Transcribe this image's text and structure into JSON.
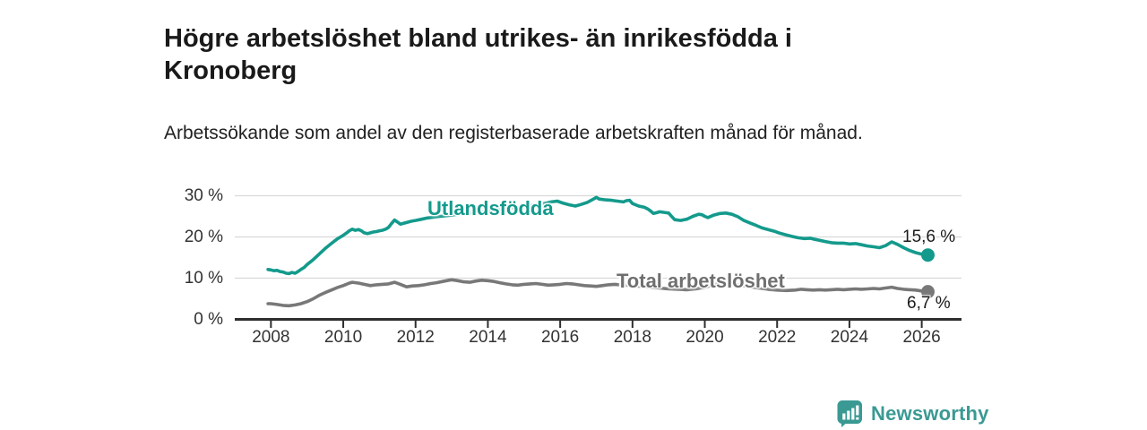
{
  "header": {
    "title": "Högre arbetslöshet bland utrikes- än inrikesfödda i Kronoberg",
    "subtitle": "Arbetssökande som andel av den registerbaserade arbetskraften månad för månad."
  },
  "chart_data": {
    "type": "line",
    "title": "Högre arbetslöshet bland utrikes- än inrikesfödda i Kronoberg",
    "subtitle": "Arbetssökande som andel av den registerbaserade arbetskraften månad för månad.",
    "grid": "horizontal",
    "x_axis": {
      "range": [
        2007.0,
        2027.1
      ],
      "ticks": [
        2008,
        2010,
        2012,
        2014,
        2016,
        2018,
        2020,
        2022,
        2024,
        2026
      ]
    },
    "y_axis": {
      "range": [
        0,
        30
      ],
      "ticks": [
        {
          "value": 0,
          "label": "0 %"
        },
        {
          "value": 10,
          "label": "10 %"
        },
        {
          "value": 20,
          "label": "20 %"
        },
        {
          "value": 30,
          "label": "30 %"
        }
      ]
    },
    "series": [
      {
        "name": "Utlandsfödda",
        "key": "utlandsfodda",
        "color": "#149a8c",
        "end_label": "15,6 %",
        "end_value": 15.6,
        "points": [
          [
            2007.92,
            12.1
          ],
          [
            2008.0,
            12.0
          ],
          [
            2008.08,
            11.8
          ],
          [
            2008.17,
            11.9
          ],
          [
            2008.25,
            11.6
          ],
          [
            2008.33,
            11.5
          ],
          [
            2008.42,
            11.2
          ],
          [
            2008.5,
            11.1
          ],
          [
            2008.58,
            11.4
          ],
          [
            2008.67,
            11.2
          ],
          [
            2008.75,
            11.6
          ],
          [
            2008.83,
            12.1
          ],
          [
            2008.92,
            12.6
          ],
          [
            2009.0,
            13.3
          ],
          [
            2009.17,
            14.5
          ],
          [
            2009.33,
            15.8
          ],
          [
            2009.5,
            17.2
          ],
          [
            2009.67,
            18.4
          ],
          [
            2009.83,
            19.5
          ],
          [
            2010.0,
            20.4
          ],
          [
            2010.08,
            20.9
          ],
          [
            2010.17,
            21.5
          ],
          [
            2010.25,
            21.9
          ],
          [
            2010.33,
            21.6
          ],
          [
            2010.42,
            21.8
          ],
          [
            2010.5,
            21.5
          ],
          [
            2010.58,
            21.0
          ],
          [
            2010.67,
            20.8
          ],
          [
            2010.75,
            21.0
          ],
          [
            2010.83,
            21.2
          ],
          [
            2010.92,
            21.3
          ],
          [
            2011.0,
            21.5
          ],
          [
            2011.08,
            21.6
          ],
          [
            2011.17,
            21.9
          ],
          [
            2011.25,
            22.3
          ],
          [
            2011.33,
            23.2
          ],
          [
            2011.42,
            24.1
          ],
          [
            2011.5,
            23.6
          ],
          [
            2011.58,
            23.1
          ],
          [
            2011.67,
            23.3
          ],
          [
            2011.75,
            23.5
          ],
          [
            2011.83,
            23.7
          ],
          [
            2011.92,
            23.9
          ],
          [
            2012.0,
            24.0
          ],
          [
            2012.17,
            24.3
          ],
          [
            2012.33,
            24.6
          ],
          [
            2012.5,
            24.8
          ],
          [
            2012.67,
            25.0
          ],
          [
            2012.83,
            25.1
          ],
          [
            2013.0,
            25.3
          ],
          [
            2013.25,
            25.6
          ],
          [
            2013.5,
            25.8
          ],
          [
            2013.75,
            26.1
          ],
          [
            2014.0,
            26.3
          ],
          [
            2014.25,
            26.6
          ],
          [
            2014.5,
            26.8
          ],
          [
            2014.75,
            27.1
          ],
          [
            2015.0,
            27.4
          ],
          [
            2015.25,
            27.7
          ],
          [
            2015.5,
            28.0
          ],
          [
            2015.75,
            28.5
          ],
          [
            2015.92,
            28.7
          ],
          [
            2016.08,
            28.2
          ],
          [
            2016.25,
            27.8
          ],
          [
            2016.42,
            27.5
          ],
          [
            2016.58,
            27.9
          ],
          [
            2016.75,
            28.4
          ],
          [
            2016.92,
            29.2
          ],
          [
            2017.0,
            29.6
          ],
          [
            2017.08,
            29.2
          ],
          [
            2017.25,
            29.0
          ],
          [
            2017.42,
            28.9
          ],
          [
            2017.58,
            28.7
          ],
          [
            2017.75,
            28.5
          ],
          [
            2017.83,
            28.8
          ],
          [
            2017.92,
            28.9
          ],
          [
            2018.0,
            28.1
          ],
          [
            2018.17,
            27.5
          ],
          [
            2018.33,
            27.2
          ],
          [
            2018.42,
            26.8
          ],
          [
            2018.5,
            26.3
          ],
          [
            2018.58,
            25.7
          ],
          [
            2018.67,
            25.9
          ],
          [
            2018.75,
            26.1
          ],
          [
            2018.92,
            25.9
          ],
          [
            2019.0,
            25.8
          ],
          [
            2019.08,
            25.0
          ],
          [
            2019.17,
            24.2
          ],
          [
            2019.33,
            24.0
          ],
          [
            2019.5,
            24.3
          ],
          [
            2019.67,
            25.0
          ],
          [
            2019.83,
            25.5
          ],
          [
            2019.92,
            25.4
          ],
          [
            2020.0,
            25.0
          ],
          [
            2020.08,
            24.7
          ],
          [
            2020.25,
            25.3
          ],
          [
            2020.42,
            25.7
          ],
          [
            2020.58,
            25.8
          ],
          [
            2020.75,
            25.5
          ],
          [
            2020.92,
            24.9
          ],
          [
            2021.08,
            24.0
          ],
          [
            2021.25,
            23.4
          ],
          [
            2021.42,
            22.8
          ],
          [
            2021.58,
            22.2
          ],
          [
            2021.75,
            21.8
          ],
          [
            2021.92,
            21.4
          ],
          [
            2022.08,
            20.9
          ],
          [
            2022.25,
            20.5
          ],
          [
            2022.42,
            20.1
          ],
          [
            2022.58,
            19.8
          ],
          [
            2022.75,
            19.6
          ],
          [
            2022.92,
            19.7
          ],
          [
            2023.0,
            19.5
          ],
          [
            2023.17,
            19.2
          ],
          [
            2023.33,
            18.9
          ],
          [
            2023.5,
            18.6
          ],
          [
            2023.67,
            18.5
          ],
          [
            2023.83,
            18.5
          ],
          [
            2024.0,
            18.3
          ],
          [
            2024.17,
            18.4
          ],
          [
            2024.33,
            18.1
          ],
          [
            2024.5,
            17.8
          ],
          [
            2024.67,
            17.6
          ],
          [
            2024.83,
            17.4
          ],
          [
            2025.0,
            17.9
          ],
          [
            2025.17,
            18.8
          ],
          [
            2025.33,
            18.2
          ],
          [
            2025.5,
            17.4
          ],
          [
            2025.67,
            16.7
          ],
          [
            2025.83,
            16.2
          ],
          [
            2026.0,
            15.8
          ],
          [
            2026.17,
            15.6
          ]
        ]
      },
      {
        "name": "Total arbetslöshet",
        "key": "total-arbetsloshet",
        "color": "#787878",
        "end_label": "6,7 %",
        "end_value": 6.7,
        "points": [
          [
            2007.92,
            3.8
          ],
          [
            2008.0,
            3.8
          ],
          [
            2008.17,
            3.6
          ],
          [
            2008.33,
            3.4
          ],
          [
            2008.5,
            3.3
          ],
          [
            2008.67,
            3.5
          ],
          [
            2008.83,
            3.8
          ],
          [
            2009.0,
            4.3
          ],
          [
            2009.17,
            5.0
          ],
          [
            2009.33,
            5.8
          ],
          [
            2009.5,
            6.5
          ],
          [
            2009.67,
            7.1
          ],
          [
            2009.83,
            7.7
          ],
          [
            2010.0,
            8.2
          ],
          [
            2010.17,
            8.8
          ],
          [
            2010.25,
            9.0
          ],
          [
            2010.42,
            8.8
          ],
          [
            2010.58,
            8.5
          ],
          [
            2010.75,
            8.2
          ],
          [
            2010.92,
            8.4
          ],
          [
            2011.08,
            8.5
          ],
          [
            2011.25,
            8.6
          ],
          [
            2011.42,
            9.0
          ],
          [
            2011.58,
            8.5
          ],
          [
            2011.75,
            7.9
          ],
          [
            2011.92,
            8.1
          ],
          [
            2012.08,
            8.2
          ],
          [
            2012.25,
            8.4
          ],
          [
            2012.42,
            8.7
          ],
          [
            2012.58,
            8.9
          ],
          [
            2012.75,
            9.2
          ],
          [
            2012.92,
            9.5
          ],
          [
            2013.0,
            9.6
          ],
          [
            2013.17,
            9.4
          ],
          [
            2013.33,
            9.1
          ],
          [
            2013.5,
            9.0
          ],
          [
            2013.67,
            9.3
          ],
          [
            2013.83,
            9.5
          ],
          [
            2014.0,
            9.4
          ],
          [
            2014.17,
            9.2
          ],
          [
            2014.33,
            8.9
          ],
          [
            2014.5,
            8.6
          ],
          [
            2014.67,
            8.4
          ],
          [
            2014.83,
            8.3
          ],
          [
            2015.0,
            8.5
          ],
          [
            2015.17,
            8.6
          ],
          [
            2015.33,
            8.7
          ],
          [
            2015.5,
            8.5
          ],
          [
            2015.67,
            8.3
          ],
          [
            2015.83,
            8.4
          ],
          [
            2016.0,
            8.5
          ],
          [
            2016.17,
            8.7
          ],
          [
            2016.33,
            8.6
          ],
          [
            2016.5,
            8.4
          ],
          [
            2016.67,
            8.2
          ],
          [
            2016.83,
            8.1
          ],
          [
            2017.0,
            8.0
          ],
          [
            2017.17,
            8.2
          ],
          [
            2017.33,
            8.4
          ],
          [
            2017.5,
            8.5
          ],
          [
            2017.67,
            8.4
          ],
          [
            2017.83,
            8.3
          ],
          [
            2018.0,
            8.2
          ],
          [
            2018.25,
            8.0
          ],
          [
            2018.5,
            7.8
          ],
          [
            2018.75,
            7.6
          ],
          [
            2019.0,
            7.4
          ],
          [
            2019.25,
            7.3
          ],
          [
            2019.5,
            7.2
          ],
          [
            2019.75,
            7.4
          ],
          [
            2020.0,
            7.8
          ],
          [
            2020.25,
            8.4
          ],
          [
            2020.5,
            8.8
          ],
          [
            2020.75,
            8.6
          ],
          [
            2021.0,
            8.3
          ],
          [
            2021.25,
            7.9
          ],
          [
            2021.5,
            7.6
          ],
          [
            2021.75,
            7.3
          ],
          [
            2022.0,
            7.1
          ],
          [
            2022.25,
            7.0
          ],
          [
            2022.5,
            7.1
          ],
          [
            2022.67,
            7.3
          ],
          [
            2022.83,
            7.2
          ],
          [
            2023.0,
            7.1
          ],
          [
            2023.17,
            7.2
          ],
          [
            2023.33,
            7.1
          ],
          [
            2023.5,
            7.2
          ],
          [
            2023.67,
            7.3
          ],
          [
            2023.83,
            7.2
          ],
          [
            2024.0,
            7.3
          ],
          [
            2024.17,
            7.4
          ],
          [
            2024.33,
            7.3
          ],
          [
            2024.5,
            7.4
          ],
          [
            2024.67,
            7.5
          ],
          [
            2024.83,
            7.4
          ],
          [
            2025.0,
            7.6
          ],
          [
            2025.17,
            7.8
          ],
          [
            2025.33,
            7.5
          ],
          [
            2025.5,
            7.3
          ],
          [
            2025.67,
            7.2
          ],
          [
            2025.83,
            7.1
          ],
          [
            2026.0,
            6.9
          ],
          [
            2026.17,
            6.7
          ]
        ]
      }
    ]
  },
  "footer": {
    "brand": "Newsworthy",
    "brand_color": "#3a9a93"
  }
}
